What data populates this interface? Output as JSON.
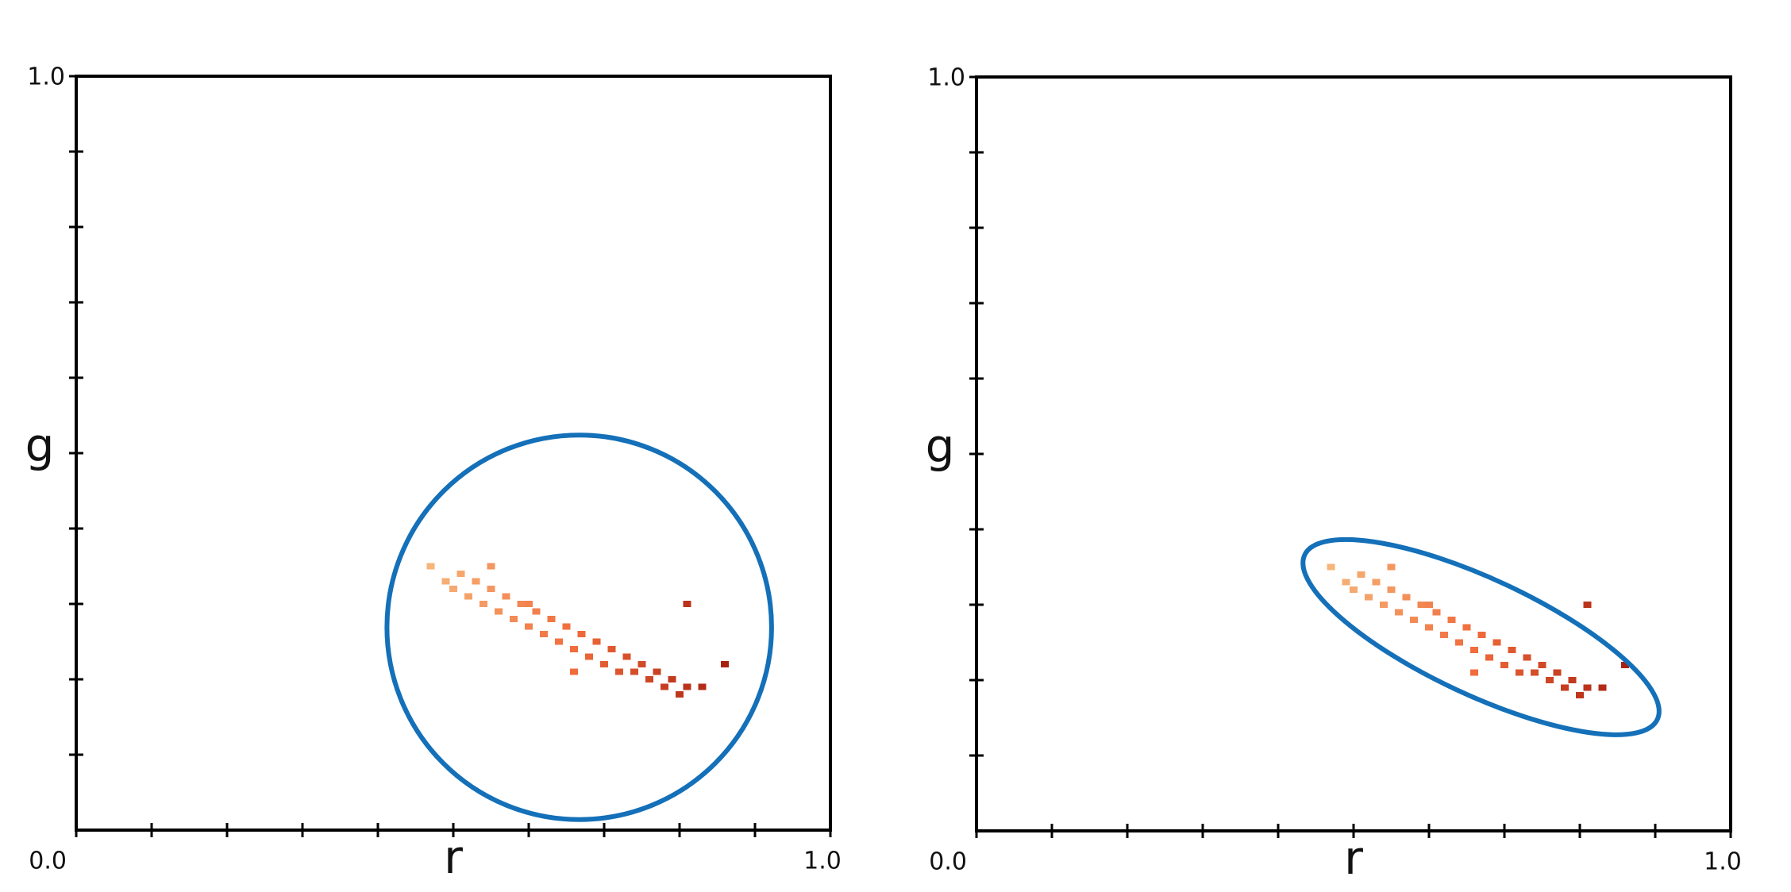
{
  "chart_data": [
    {
      "type": "scatter",
      "xlabel": "r",
      "ylabel": "g",
      "xlabel_color": "#c8202a",
      "ylabel_color": "#2aa04a",
      "xlim": [
        0,
        1
      ],
      "ylim": [
        0,
        1
      ],
      "xticks": [
        {
          "value": 0,
          "label": "0.0"
        },
        {
          "value": 1,
          "label": "1.0"
        }
      ],
      "yticks": [
        {
          "value": 1,
          "label": "1.0"
        }
      ],
      "minor_ticks": [
        0.1,
        0.2,
        0.3,
        0.4,
        0.5,
        0.6,
        0.7,
        0.8,
        0.9
      ],
      "x": [
        0.47,
        0.49,
        0.5,
        0.51,
        0.52,
        0.53,
        0.54,
        0.55,
        0.56,
        0.57,
        0.58,
        0.59,
        0.6,
        0.61,
        0.62,
        0.63,
        0.64,
        0.65,
        0.66,
        0.67,
        0.68,
        0.69,
        0.7,
        0.71,
        0.72,
        0.73,
        0.74,
        0.75,
        0.76,
        0.77,
        0.78,
        0.79,
        0.8,
        0.81,
        0.83,
        0.86,
        0.81,
        0.55,
        0.6,
        0.66
      ],
      "y": [
        0.35,
        0.33,
        0.32,
        0.34,
        0.31,
        0.33,
        0.3,
        0.32,
        0.29,
        0.31,
        0.28,
        0.3,
        0.27,
        0.29,
        0.26,
        0.28,
        0.25,
        0.27,
        0.24,
        0.26,
        0.23,
        0.25,
        0.22,
        0.24,
        0.21,
        0.23,
        0.21,
        0.22,
        0.2,
        0.21,
        0.19,
        0.2,
        0.18,
        0.19,
        0.19,
        0.22,
        0.3,
        0.35,
        0.3,
        0.21
      ],
      "color_scale": [
        "#f7b57a",
        "#f06a3a",
        "#a8200f"
      ],
      "ellipse": {
        "cx": 0.667,
        "cy": 0.269,
        "rx": 0.255,
        "ry": 0.255,
        "angle": 0,
        "color": "#1470b8"
      }
    },
    {
      "type": "scatter",
      "xlabel": "r",
      "ylabel": "g",
      "xlabel_color": "#c8202a",
      "ylabel_color": "#2aa04a",
      "xlim": [
        0,
        1
      ],
      "ylim": [
        0,
        1
      ],
      "xticks": [
        {
          "value": 0,
          "label": "0.0"
        },
        {
          "value": 1,
          "label": "1.0"
        }
      ],
      "yticks": [
        {
          "value": 1,
          "label": "1.0"
        }
      ],
      "minor_ticks": [
        0.1,
        0.2,
        0.3,
        0.4,
        0.5,
        0.6,
        0.7,
        0.8,
        0.9
      ],
      "x": [
        0.47,
        0.49,
        0.5,
        0.51,
        0.52,
        0.53,
        0.54,
        0.55,
        0.56,
        0.57,
        0.58,
        0.59,
        0.6,
        0.61,
        0.62,
        0.63,
        0.64,
        0.65,
        0.66,
        0.67,
        0.68,
        0.69,
        0.7,
        0.71,
        0.72,
        0.73,
        0.74,
        0.75,
        0.76,
        0.77,
        0.78,
        0.79,
        0.8,
        0.81,
        0.83,
        0.86,
        0.81,
        0.55,
        0.6,
        0.66
      ],
      "y": [
        0.35,
        0.33,
        0.32,
        0.34,
        0.31,
        0.33,
        0.3,
        0.32,
        0.29,
        0.31,
        0.28,
        0.3,
        0.27,
        0.29,
        0.26,
        0.28,
        0.25,
        0.27,
        0.24,
        0.26,
        0.23,
        0.25,
        0.22,
        0.24,
        0.21,
        0.23,
        0.21,
        0.22,
        0.2,
        0.21,
        0.19,
        0.2,
        0.18,
        0.19,
        0.19,
        0.22,
        0.3,
        0.35,
        0.3,
        0.21
      ],
      "color_scale": [
        "#f7b57a",
        "#f06a3a",
        "#a8200f"
      ],
      "ellipse": {
        "cx": 0.669,
        "cy": 0.257,
        "rx": 0.258,
        "ry": 0.077,
        "angle": -25,
        "color": "#1470b8"
      }
    }
  ]
}
